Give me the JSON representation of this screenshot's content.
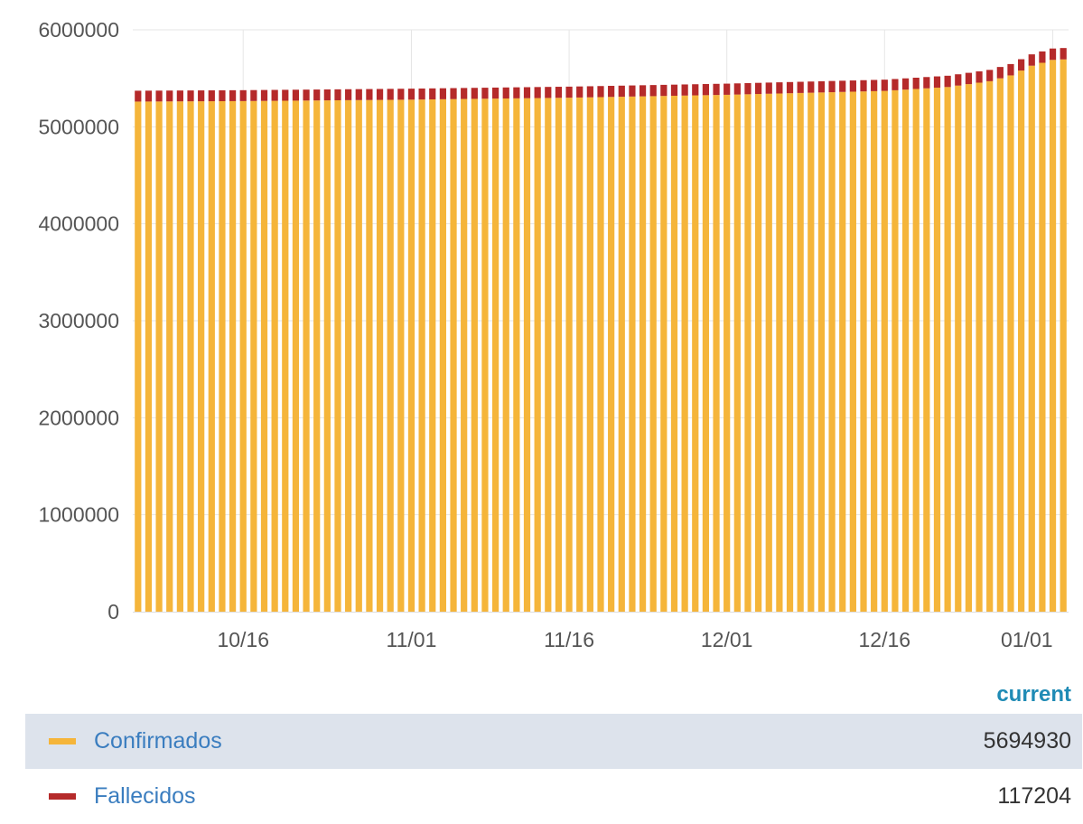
{
  "chart_data": {
    "type": "bar",
    "stacked": true,
    "x_start": "2020-10-06",
    "x_end": "2021-01-02",
    "x_ticks": [
      "10/16",
      "11/01",
      "11/16",
      "12/01",
      "12/16",
      "01/01"
    ],
    "y_ticks": [
      "0",
      "1000000",
      "2000000",
      "3000000",
      "4000000",
      "5000000",
      "6000000"
    ],
    "ylim": [
      0,
      6000000
    ],
    "grid": true,
    "series": [
      {
        "name": "Confirmados",
        "color": "#f5b53a",
        "keypoints": [
          {
            "date": "2020-10-06",
            "value": 5260000
          },
          {
            "date": "2020-10-16",
            "value": 5265000
          },
          {
            "date": "2020-11-01",
            "value": 5280000
          },
          {
            "date": "2020-11-16",
            "value": 5300000
          },
          {
            "date": "2020-12-01",
            "value": 5330000
          },
          {
            "date": "2020-12-16",
            "value": 5370000
          },
          {
            "date": "2020-12-22",
            "value": 5410000
          },
          {
            "date": "2020-12-26",
            "value": 5470000
          },
          {
            "date": "2020-12-28",
            "value": 5530000
          },
          {
            "date": "2020-12-30",
            "value": 5630000
          },
          {
            "date": "2021-01-01",
            "value": 5690000
          },
          {
            "date": "2021-01-02",
            "value": 5694930
          }
        ]
      },
      {
        "name": "Fallecidos",
        "color": "#b52a2a",
        "keypoints": [
          {
            "date": "2020-10-06",
            "value": 112000
          },
          {
            "date": "2020-11-16",
            "value": 114000
          },
          {
            "date": "2020-12-16",
            "value": 116000
          },
          {
            "date": "2021-01-02",
            "value": 117204
          }
        ]
      }
    ],
    "legend": {
      "header": "current",
      "placement": "bottom",
      "rows": [
        {
          "name": "Confirmados",
          "value": "5694930",
          "color": "#f5b53a"
        },
        {
          "name": "Fallecidos",
          "value": "117204",
          "color": "#b52a2a"
        }
      ]
    }
  }
}
